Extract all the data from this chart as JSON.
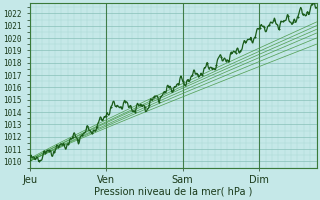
{
  "xlabel": "Pression niveau de la mer( hPa )",
  "ylim": [
    1009.5,
    1022.8
  ],
  "yticks": [
    1010,
    1011,
    1012,
    1013,
    1014,
    1015,
    1016,
    1017,
    1018,
    1019,
    1020,
    1021,
    1022
  ],
  "xtick_labels": [
    "Jeu",
    "Ven",
    "Sam",
    "Dim"
  ],
  "xtick_positions": [
    0,
    24,
    48,
    72
  ],
  "xlim": [
    0,
    90
  ],
  "bg_color": "#c5e8e8",
  "grid_color_minor": "#a8d8d0",
  "grid_color_major": "#88c0b8",
  "line_color_dark": "#1a5c1a",
  "line_color_mid": "#2d7a2d",
  "line_color_light": "#4a9a4a",
  "vline_color": "#2a6a2a"
}
